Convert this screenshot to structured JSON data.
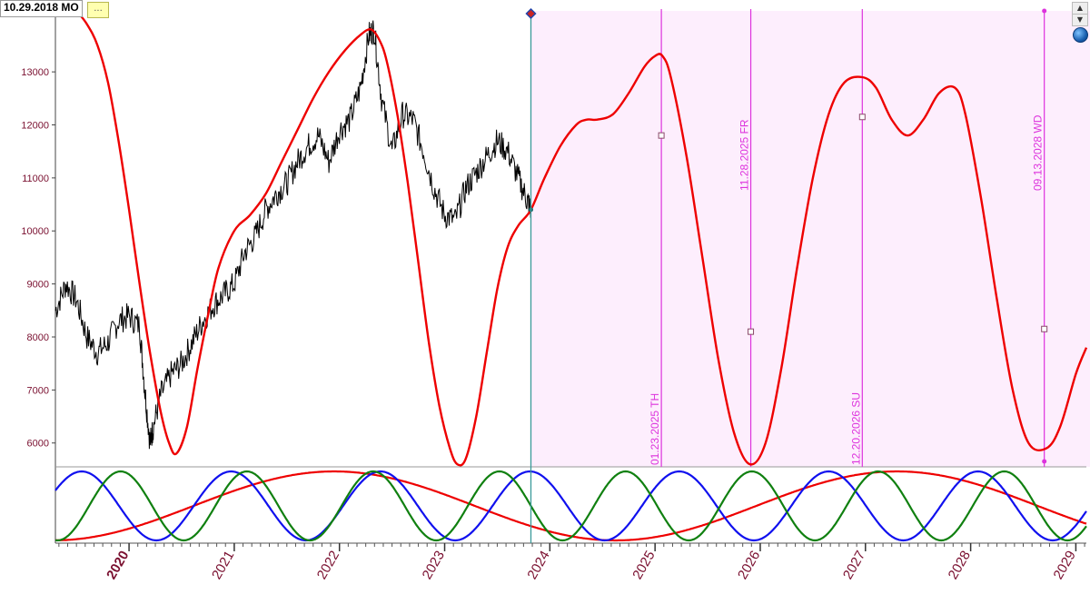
{
  "header": {
    "date_label": "10.29.2018 MO",
    "tooltip_text": "..."
  },
  "colors": {
    "price": "#000000",
    "composite": "#ee0000",
    "cycle_red": "#ee0000",
    "cycle_blue": "#1010ee",
    "cycle_green": "#108010",
    "forecast_bg": "#fdeefd",
    "marker": "#dd33dd",
    "now_line": "#3a9a9a",
    "axis_labels": "#7a1030"
  },
  "icons": {
    "scroll_up": "scroll-up-icon",
    "scroll_down": "scroll-down-icon",
    "globe": "globe-icon"
  },
  "chart_data": [
    {
      "type": "line",
      "panel": "main",
      "y_ticks": [
        6000,
        7000,
        8000,
        9000,
        10000,
        11000,
        12000,
        13000
      ],
      "ylim": [
        5550,
        14150
      ],
      "x_ticks": [
        "2020",
        "2021",
        "2022",
        "2023",
        "2024",
        "2025",
        "2026",
        "2027",
        "2028",
        "2029"
      ],
      "x_tick_years": [
        2020,
        2021,
        2022,
        2023,
        2024,
        2025,
        2026,
        2027,
        2028,
        2029
      ],
      "xlim": [
        2019.3,
        2029.1
      ],
      "grid": false,
      "forecast_start": 2023.82,
      "series": [
        {
          "role": "price",
          "x": [
            2019.3,
            2019.4,
            2019.5,
            2019.6,
            2019.7,
            2019.8,
            2019.9,
            2020.0,
            2020.1,
            2020.15,
            2020.2,
            2020.23,
            2020.3,
            2020.4,
            2020.5,
            2020.6,
            2020.7,
            2020.8,
            2020.9,
            2021.0,
            2021.1,
            2021.2,
            2021.3,
            2021.4,
            2021.5,
            2021.6,
            2021.7,
            2021.8,
            2021.9,
            2022.0,
            2022.1,
            2022.2,
            2022.28,
            2022.33,
            2022.4,
            2022.5,
            2022.6,
            2022.7,
            2022.8,
            2022.9,
            2023.0,
            2023.1,
            2023.2,
            2023.3,
            2023.4,
            2023.5,
            2023.6,
            2023.7,
            2023.78,
            2023.82
          ],
          "y": [
            8500,
            9000,
            8700,
            8000,
            7700,
            7900,
            8300,
            8400,
            8200,
            7000,
            6000,
            6300,
            6900,
            7300,
            7500,
            7900,
            8300,
            8600,
            8800,
            9000,
            9600,
            9900,
            10400,
            10700,
            10900,
            11300,
            11600,
            11800,
            11300,
            11900,
            12100,
            12700,
            13700,
            13800,
            12500,
            11500,
            12200,
            12100,
            11500,
            10800,
            10300,
            10200,
            10800,
            11100,
            11400,
            11700,
            11500,
            11000,
            10600,
            10400
          ]
        },
        {
          "role": "composite_forecast",
          "x": [
            2019.5,
            2019.6,
            2019.7,
            2019.8,
            2019.9,
            2020.0,
            2020.1,
            2020.2,
            2020.3,
            2020.38,
            2020.45,
            2020.55,
            2020.65,
            2020.75,
            2020.85,
            2021.0,
            2021.15,
            2021.3,
            2021.45,
            2021.6,
            2021.75,
            2021.9,
            2022.05,
            2022.2,
            2022.3,
            2022.38,
            2022.45,
            2022.55,
            2022.65,
            2022.75,
            2022.85,
            2022.95,
            2023.05,
            2023.12,
            2023.2,
            2023.3,
            2023.4,
            2023.5,
            2023.6,
            2023.7,
            2023.82,
            2023.95,
            2024.1,
            2024.25,
            2024.35,
            2024.45,
            2024.6,
            2024.75,
            2024.9,
            2025.0,
            2025.07,
            2025.15,
            2025.3,
            2025.45,
            2025.6,
            2025.75,
            2025.9,
            2026.05,
            2026.2,
            2026.35,
            2026.5,
            2026.65,
            2026.8,
            2026.97,
            2027.1,
            2027.25,
            2027.4,
            2027.55,
            2027.7,
            2027.85,
            2027.95,
            2028.1,
            2028.25,
            2028.4,
            2028.55,
            2028.72,
            2028.85,
            2029.0,
            2029.1
          ],
          "y": [
            14150,
            13900,
            13500,
            12800,
            11700,
            10400,
            9000,
            7700,
            6600,
            6000,
            5800,
            6300,
            7400,
            8400,
            9300,
            10000,
            10300,
            10700,
            11300,
            11900,
            12500,
            13000,
            13400,
            13700,
            13800,
            13600,
            13200,
            12200,
            10900,
            9400,
            7900,
            6700,
            5900,
            5600,
            5700,
            6500,
            7700,
            8900,
            9700,
            10100,
            10400,
            11000,
            11600,
            12000,
            12100,
            12100,
            12200,
            12600,
            13100,
            13300,
            13300,
            12900,
            11400,
            9500,
            7600,
            6200,
            5600,
            6000,
            7400,
            9300,
            11000,
            12200,
            12800,
            12900,
            12700,
            12100,
            11800,
            12100,
            12600,
            12700,
            12200,
            10600,
            8700,
            7000,
            6000,
            5900,
            6300,
            7300,
            7800
          ]
        }
      ],
      "markers": [
        {
          "label": "01.23.2025 TH",
          "year": 2025.06,
          "point": 11800
        },
        {
          "label": "11.28.2025 FR",
          "year": 2025.91,
          "point": 8100
        },
        {
          "label": "12.20.2026 SU",
          "year": 2026.97,
          "point": 12150
        },
        {
          "label": "09.13.2028 WD",
          "year": 2028.7,
          "point": 8150
        }
      ]
    },
    {
      "type": "line",
      "panel": "cycles",
      "xlim": [
        2019.3,
        2029.1
      ],
      "ylim": [
        -1.08,
        1.08
      ],
      "series": [
        {
          "role": "red_cycle",
          "period_years": 5.35,
          "peak_year": 2021.95
        },
        {
          "role": "blue_cycle",
          "period_years": 1.42,
          "peak_year": 2019.55
        },
        {
          "role": "green_cycle",
          "period_years": 1.2,
          "peak_year": 2019.92
        }
      ]
    }
  ]
}
